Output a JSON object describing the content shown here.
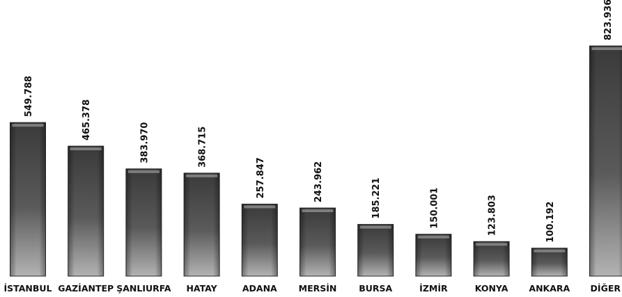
{
  "chart_data": {
    "type": "bar",
    "categories": [
      "İSTANBUL",
      "GAZİANTEP",
      "ŞANLIURFA",
      "HATAY",
      "ADANA",
      "MERSİN",
      "BURSA",
      "İZMİR",
      "KONYA",
      "ANKARA",
      "DİĞER"
    ],
    "values": [
      549788,
      465378,
      383970,
      368715,
      257847,
      243962,
      185221,
      150001,
      123803,
      100192,
      823936
    ],
    "data_labels": [
      "549.788",
      "465.378",
      "383.970",
      "368.715",
      "257.847",
      "243.962",
      "185.221",
      "150.001",
      "123.803",
      "100.192",
      "823.936"
    ],
    "ylim": [
      0,
      823936
    ],
    "grid": false,
    "legend": "none",
    "colors": {
      "bar_dark": "#3a3a3a",
      "bar_light": "#b3b3b3",
      "text": "#111111"
    }
  }
}
